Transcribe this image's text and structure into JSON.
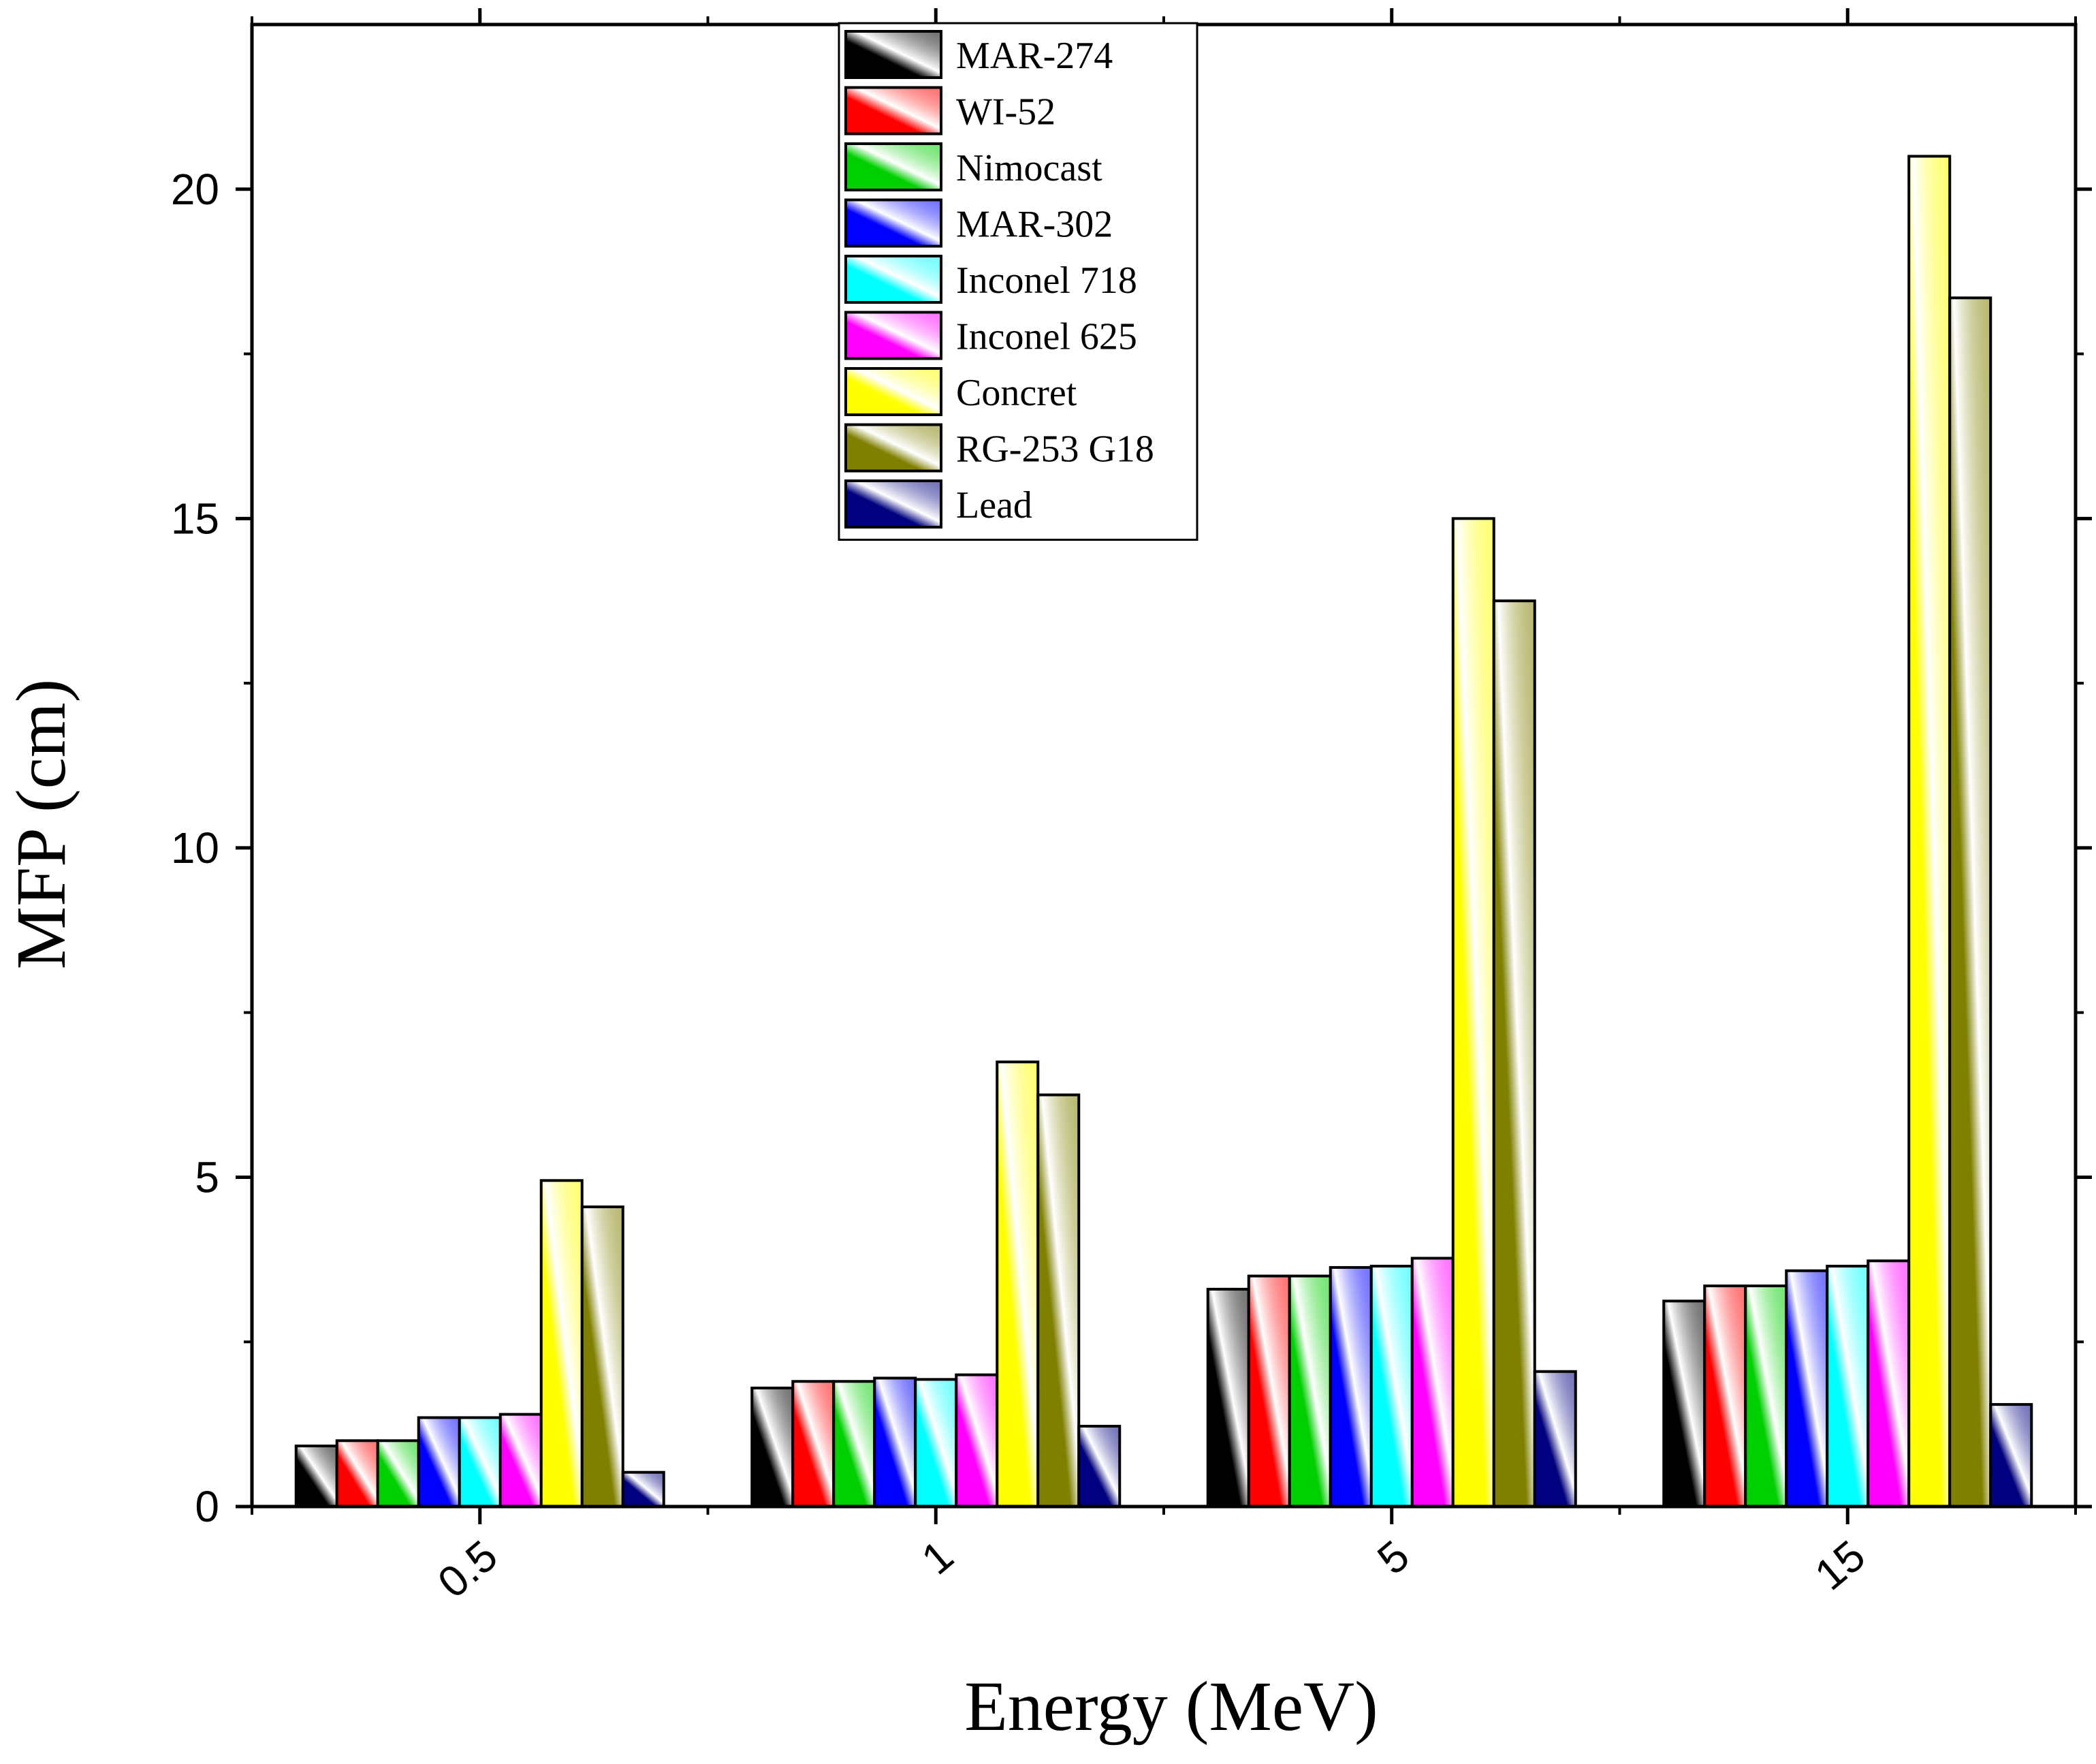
{
  "chart_data": {
    "type": "bar",
    "title": "",
    "xlabel": "Energy (MeV)",
    "ylabel": "MFP (cm)",
    "categories": [
      "0.5",
      "1",
      "5",
      "15"
    ],
    "ylim": [
      0,
      22.5
    ],
    "yticks": [
      0,
      5,
      10,
      15,
      20
    ],
    "ytick_labels": [
      "0",
      "5",
      "10",
      "15",
      "20"
    ],
    "minor_ytick_step": 2.5,
    "grid": false,
    "legend_position": "top-center",
    "series": [
      {
        "name": "MAR-274",
        "color": "#000000",
        "values": [
          0.92,
          1.8,
          3.3,
          3.12
        ]
      },
      {
        "name": "WI-52",
        "color": "#ff0000",
        "values": [
          1.0,
          1.9,
          3.5,
          3.35
        ]
      },
      {
        "name": "Nimocast",
        "color": "#00d000",
        "values": [
          1.0,
          1.9,
          3.5,
          3.35
        ]
      },
      {
        "name": "MAR-302",
        "color": "#0000ff",
        "values": [
          1.35,
          1.95,
          3.63,
          3.58
        ]
      },
      {
        "name": "Inconel 718",
        "color": "#00ffff",
        "values": [
          1.35,
          1.93,
          3.65,
          3.65
        ]
      },
      {
        "name": "Inconel 625",
        "color": "#ff00ff",
        "values": [
          1.4,
          2.0,
          3.77,
          3.73
        ]
      },
      {
        "name": "Concret",
        "color": "#ffff00",
        "values": [
          4.95,
          6.75,
          15.0,
          20.5
        ]
      },
      {
        "name": "RG-253 G18",
        "color": "#808000",
        "values": [
          4.55,
          6.25,
          13.75,
          18.35
        ]
      },
      {
        "name": "Lead",
        "color": "#000080",
        "values": [
          0.52,
          1.22,
          2.05,
          1.55
        ]
      }
    ]
  }
}
